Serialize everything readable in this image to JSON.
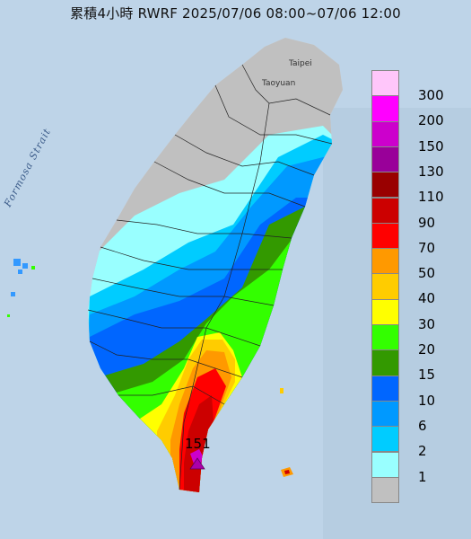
{
  "title": "累積4小時 RWRF 2025/07/06 08:00~07/06 12:00",
  "labels": {
    "strait": "Formosa Strait",
    "taipei": "Taipei",
    "taoyuan": "Taoyuan",
    "max_value": "151"
  },
  "legend": {
    "levels": [
      {
        "label": "300",
        "color": "#ffc6fa"
      },
      {
        "label": "200",
        "color": "#ff00ff"
      },
      {
        "label": "150",
        "color": "#cc00cc"
      },
      {
        "label": "130",
        "color": "#990099"
      },
      {
        "label": "110",
        "color": "#990000"
      },
      {
        "label": "90",
        "color": "#cc0000"
      },
      {
        "label": "70",
        "color": "#ff0000"
      },
      {
        "label": "50",
        "color": "#ff9900"
      },
      {
        "label": "40",
        "color": "#ffcc00"
      },
      {
        "label": "30",
        "color": "#ffff00"
      },
      {
        "label": "20",
        "color": "#33ff00"
      },
      {
        "label": "15",
        "color": "#339900"
      },
      {
        "label": "10",
        "color": "#0066ff"
      },
      {
        "label": "6",
        "color": "#0099ff"
      },
      {
        "label": "2",
        "color": "#00ccff"
      },
      {
        "label": "1",
        "color": "#99ffff"
      },
      {
        "label": "",
        "color": "#c0c0c0"
      }
    ]
  }
}
